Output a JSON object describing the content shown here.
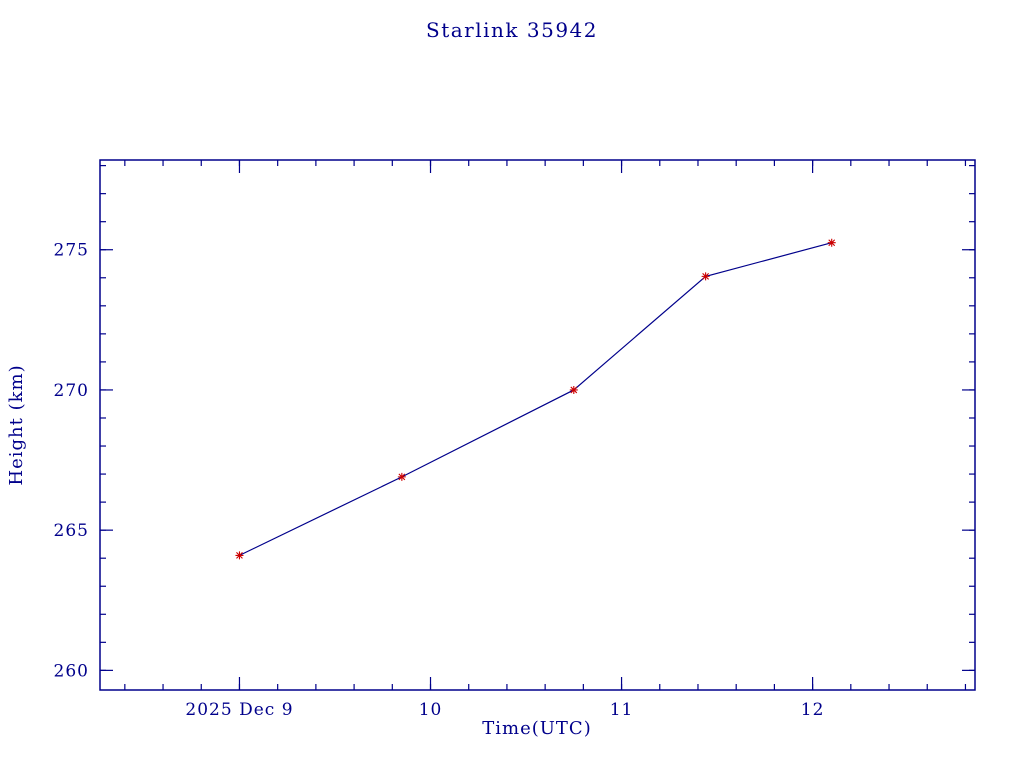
{
  "page": {
    "background": "#ffffff"
  },
  "chart_data": {
    "type": "line",
    "title": "Starlink 35942",
    "xlabel": "Time(UTC)",
    "ylabel": "Height (km)",
    "series": [
      {
        "name": "height-km",
        "x": [
          9.0,
          9.85,
          10.75,
          11.44,
          12.1
        ],
        "y": [
          264.1,
          266.9,
          270.0,
          274.05,
          275.25
        ]
      }
    ],
    "xlim": [
      8.27,
      12.85
    ],
    "ylim": [
      259.3,
      278.2
    ],
    "xticks": [
      {
        "value": 9,
        "label": "2025 Dec 9"
      },
      {
        "value": 10,
        "label": "10"
      },
      {
        "value": 11,
        "label": "11"
      },
      {
        "value": 12,
        "label": "12"
      }
    ],
    "yticks": [
      {
        "value": 260,
        "label": "260"
      },
      {
        "value": 265,
        "label": "265"
      },
      {
        "value": 270,
        "label": "270"
      },
      {
        "value": 275,
        "label": "275"
      }
    ],
    "x_minor_step": 0.2,
    "y_minor_step": 1,
    "grid": false,
    "legend": "none",
    "colors": {
      "line": "#00008b",
      "marker": "#cc0000",
      "axis": "#00008b",
      "text": "#00008b"
    }
  }
}
